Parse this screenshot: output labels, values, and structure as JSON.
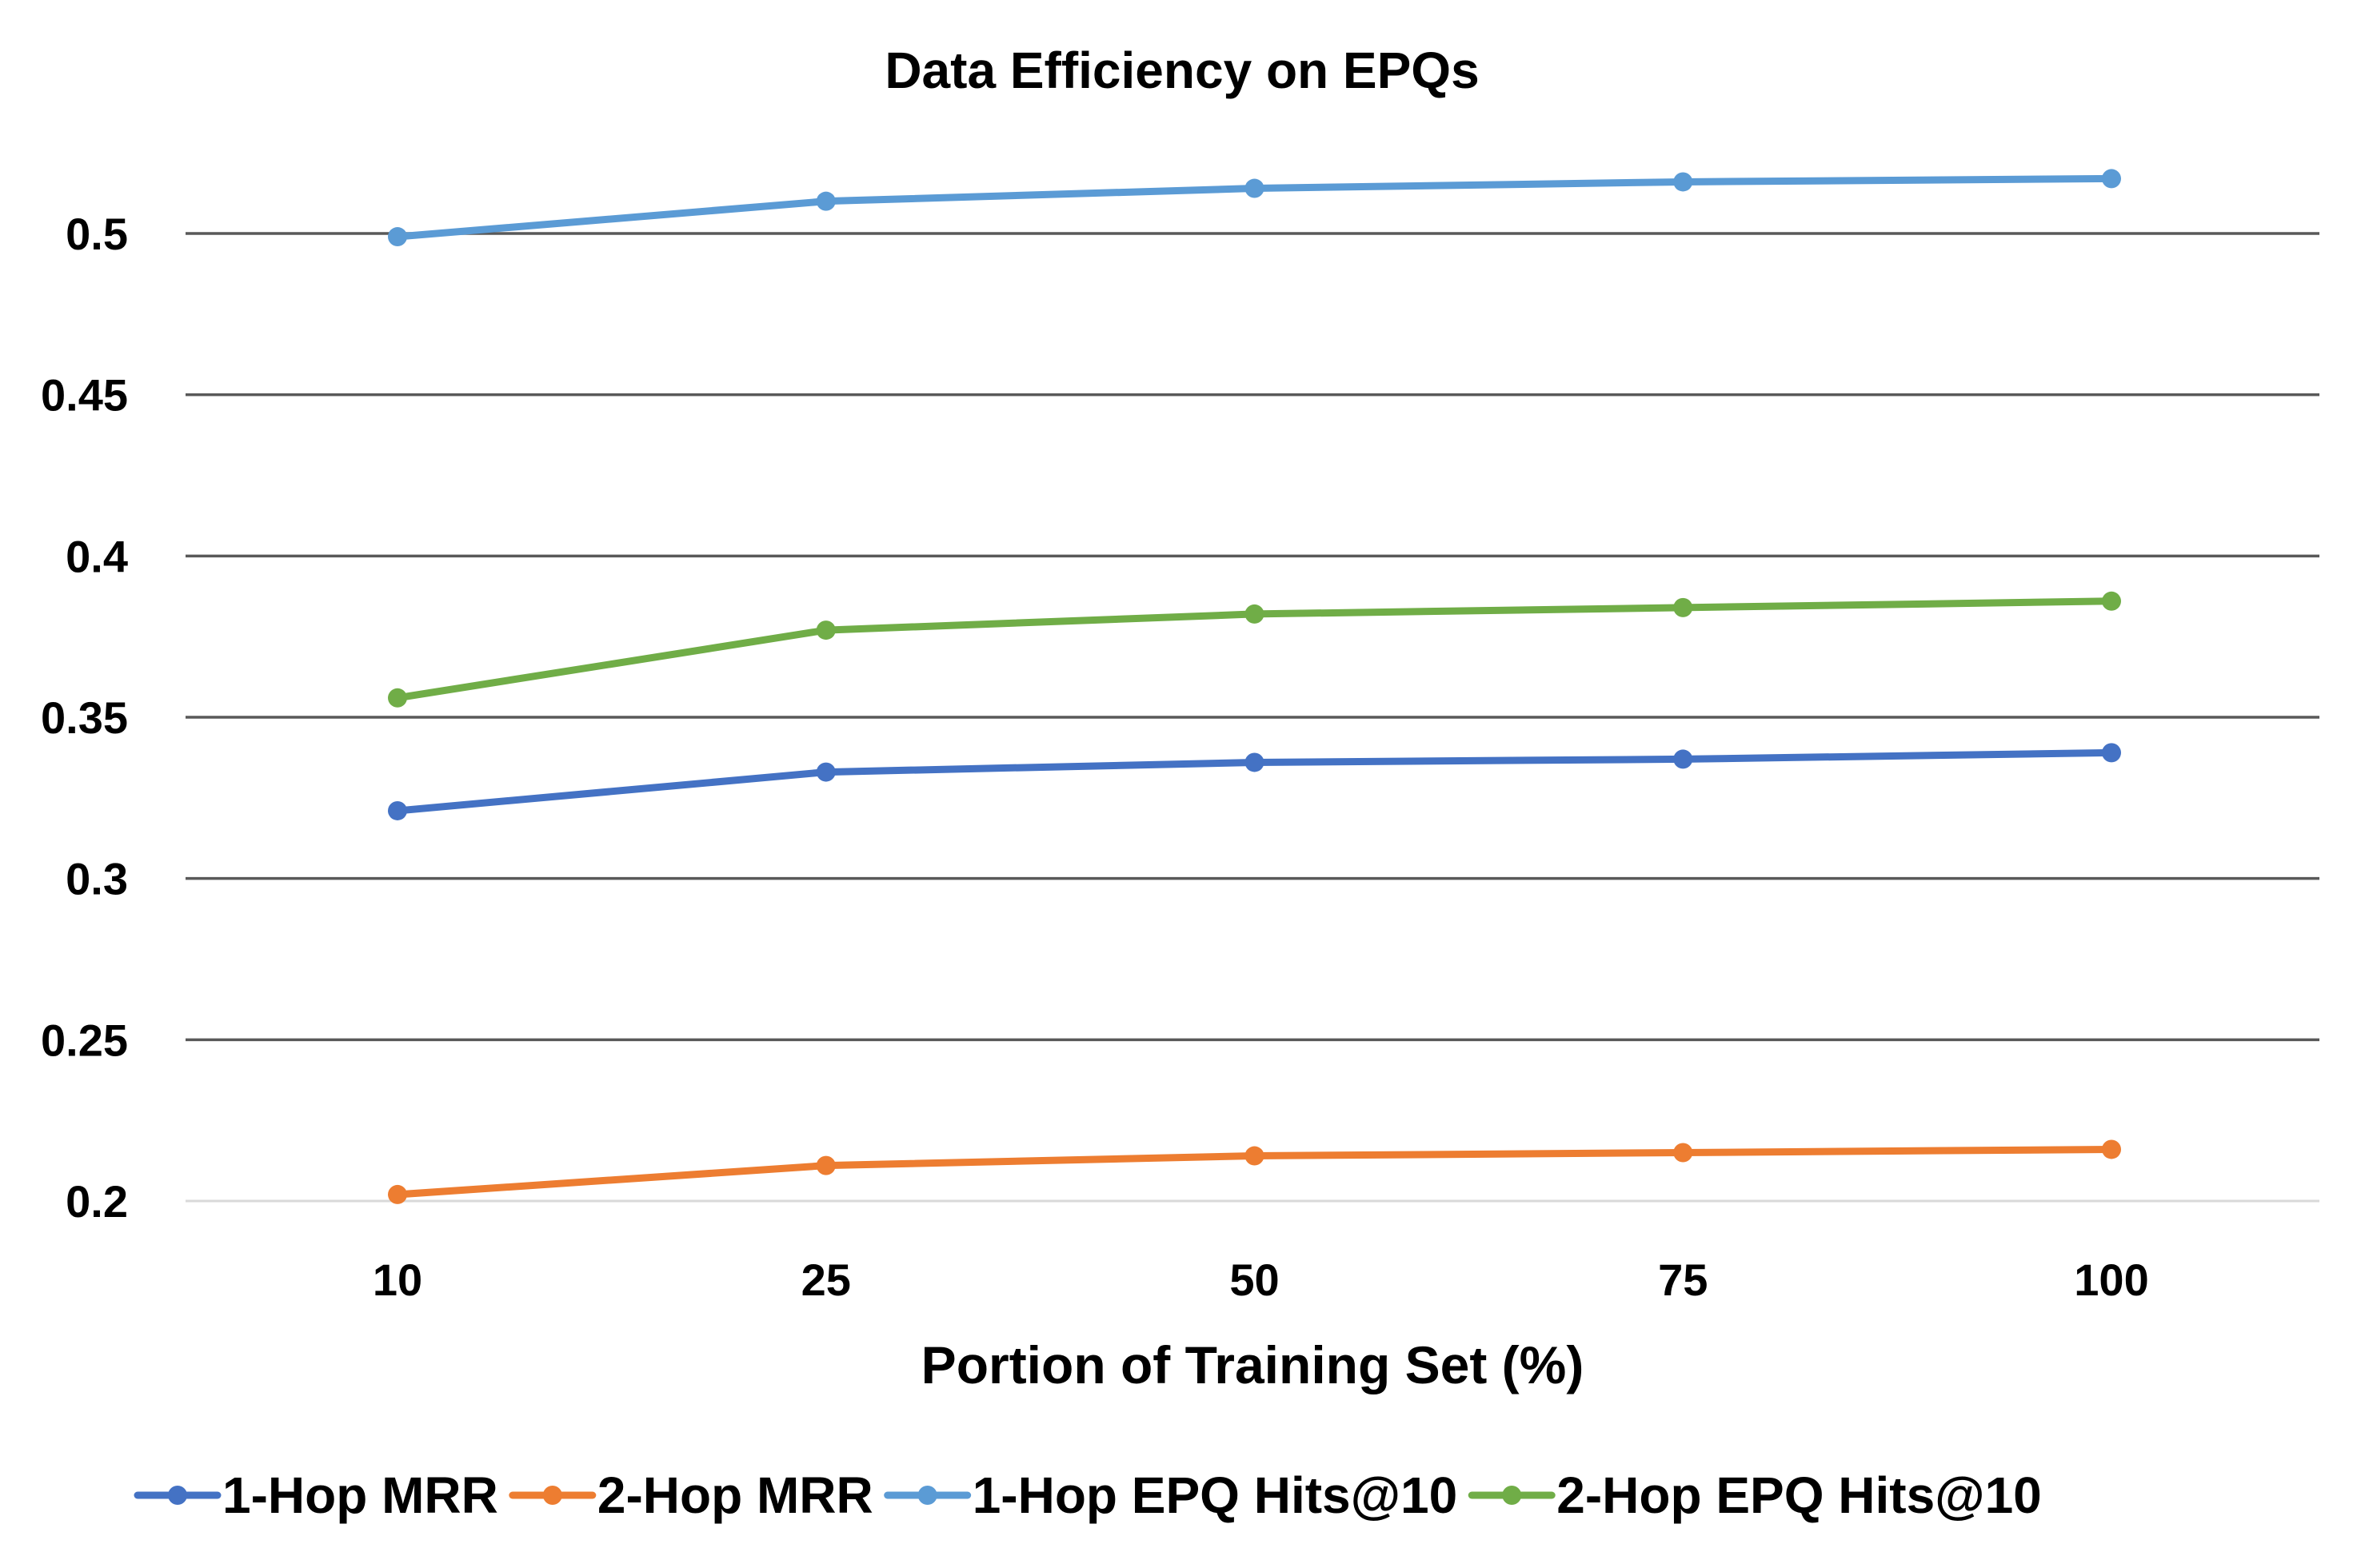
{
  "chart_data": {
    "type": "line",
    "title": "Data Efficiency on EPQs",
    "xlabel": "Portion of Training Set (%)",
    "ylabel": "",
    "categories": [
      "10",
      "25",
      "50",
      "75",
      "100"
    ],
    "ylim": [
      0.2,
      0.5
    ],
    "yticks": [
      "0.2",
      "0.25",
      "0.3",
      "0.35",
      "0.4",
      "0.45",
      "0.5"
    ],
    "grid": true,
    "legend_position": "bottom",
    "series": [
      {
        "name": "1-Hop MRR",
        "color": "#4472C4",
        "values": [
          0.321,
          0.333,
          0.336,
          0.337,
          0.339
        ]
      },
      {
        "name": "2-Hop MRR",
        "color": "#ED7D31",
        "values": [
          0.202,
          0.211,
          0.214,
          0.215,
          0.216
        ]
      },
      {
        "name": "1-Hop EPQ Hits@10",
        "color": "#5B9BD5",
        "values": [
          0.499,
          0.51,
          0.514,
          0.516,
          0.517
        ]
      },
      {
        "name": "2-Hop EPQ Hits@10",
        "color": "#70AD47",
        "values": [
          0.356,
          0.377,
          0.382,
          0.384,
          0.386
        ]
      }
    ]
  }
}
